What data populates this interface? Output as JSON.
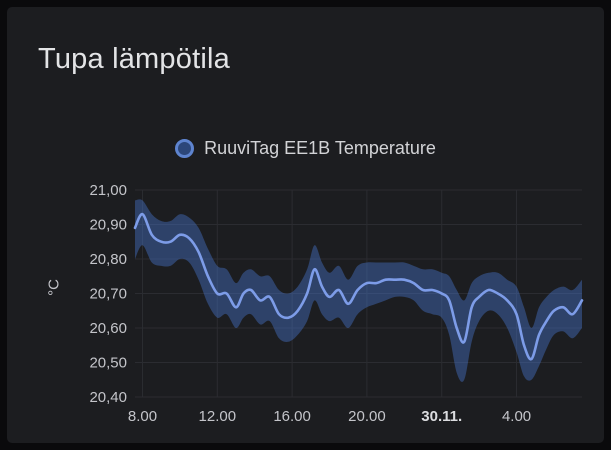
{
  "panel": {
    "title": "Tupa lämpötila"
  },
  "legend": {
    "series_icon": "circle-series-icon",
    "label": "RuuviTag EE1B Temperature"
  },
  "chart_data": {
    "type": "line",
    "title": "Tupa lämpötila",
    "xlabel": "",
    "ylabel": "°C",
    "grid": true,
    "legend_position": "top-center",
    "ylim": [
      20.4,
      21.0
    ],
    "x_range_hours": [
      7.6,
      31.5
    ],
    "y_ticks": [
      {
        "value": 21.0,
        "label": "21,00"
      },
      {
        "value": 20.9,
        "label": "20,90"
      },
      {
        "value": 20.8,
        "label": "20,80"
      },
      {
        "value": 20.7,
        "label": "20,70"
      },
      {
        "value": 20.6,
        "label": "20,60"
      },
      {
        "value": 20.5,
        "label": "20,50"
      },
      {
        "value": 20.4,
        "label": "20,40"
      }
    ],
    "x_ticks": [
      {
        "hour": 8,
        "label": "8.00",
        "bold": false
      },
      {
        "hour": 12,
        "label": "12.00",
        "bold": false
      },
      {
        "hour": 16,
        "label": "16.00",
        "bold": false
      },
      {
        "hour": 20,
        "label": "20.00",
        "bold": false
      },
      {
        "hour": 24,
        "label": "30.11.",
        "bold": true
      },
      {
        "hour": 28,
        "label": "4.00",
        "bold": false
      }
    ],
    "colors": {
      "line": "#7d9ce8",
      "band": "rgba(72,118,208,0.42)",
      "grid": "#2b2c31",
      "tick_text": "#c4c5ca",
      "tick_text_bold": "#dcdde0"
    },
    "series": [
      {
        "name": "RuuviTag EE1B Temperature",
        "x_hours": [
          7.6,
          8.0,
          8.5,
          9.0,
          9.5,
          10.0,
          10.5,
          11.0,
          11.5,
          12.0,
          12.5,
          13.0,
          13.4,
          13.8,
          14.3,
          14.8,
          15.3,
          15.8,
          16.3,
          16.8,
          17.2,
          17.6,
          18.0,
          18.5,
          19.0,
          19.5,
          20.0,
          20.5,
          21.0,
          21.5,
          22.0,
          22.5,
          23.0,
          23.5,
          24.0,
          24.4,
          24.8,
          25.2,
          25.6,
          26.0,
          26.5,
          27.0,
          27.5,
          28.0,
          28.4,
          28.8,
          29.2,
          29.6,
          30.0,
          30.5,
          31.0,
          31.5
        ],
        "mean": [
          20.89,
          20.93,
          20.87,
          20.85,
          20.85,
          20.87,
          20.86,
          20.82,
          20.75,
          20.7,
          20.7,
          20.66,
          20.7,
          20.71,
          20.68,
          20.69,
          20.64,
          20.63,
          20.65,
          20.7,
          20.77,
          20.72,
          20.69,
          20.71,
          20.67,
          20.71,
          20.73,
          20.73,
          20.74,
          20.74,
          20.74,
          20.73,
          20.71,
          20.71,
          20.7,
          20.68,
          20.6,
          20.56,
          20.66,
          20.69,
          20.71,
          20.7,
          20.68,
          20.64,
          20.55,
          20.51,
          20.58,
          20.62,
          20.65,
          20.66,
          20.64,
          20.68
        ],
        "band_low": [
          20.8,
          20.84,
          20.79,
          20.78,
          20.78,
          20.8,
          20.79,
          20.74,
          20.67,
          20.63,
          20.64,
          20.6,
          20.63,
          20.64,
          20.61,
          20.62,
          20.57,
          20.56,
          20.58,
          20.62,
          20.68,
          20.64,
          20.62,
          20.63,
          20.6,
          20.64,
          20.66,
          20.67,
          20.68,
          20.69,
          20.69,
          20.68,
          20.65,
          20.64,
          20.63,
          20.58,
          20.47,
          20.45,
          20.56,
          20.62,
          20.65,
          20.64,
          20.6,
          20.53,
          20.46,
          20.45,
          20.49,
          20.54,
          20.58,
          20.59,
          20.57,
          20.6
        ],
        "band_high": [
          20.97,
          20.97,
          20.93,
          20.91,
          20.91,
          20.93,
          20.92,
          20.89,
          20.83,
          20.78,
          20.77,
          20.73,
          20.76,
          20.77,
          20.75,
          20.75,
          20.71,
          20.7,
          20.72,
          20.77,
          20.84,
          20.79,
          20.76,
          20.78,
          20.74,
          20.78,
          20.79,
          20.79,
          20.79,
          20.79,
          20.79,
          20.78,
          20.77,
          20.77,
          20.76,
          20.75,
          20.71,
          20.68,
          20.73,
          20.75,
          20.76,
          20.76,
          20.74,
          20.72,
          20.66,
          20.6,
          20.66,
          20.69,
          20.71,
          20.72,
          20.71,
          20.74
        ]
      }
    ]
  }
}
